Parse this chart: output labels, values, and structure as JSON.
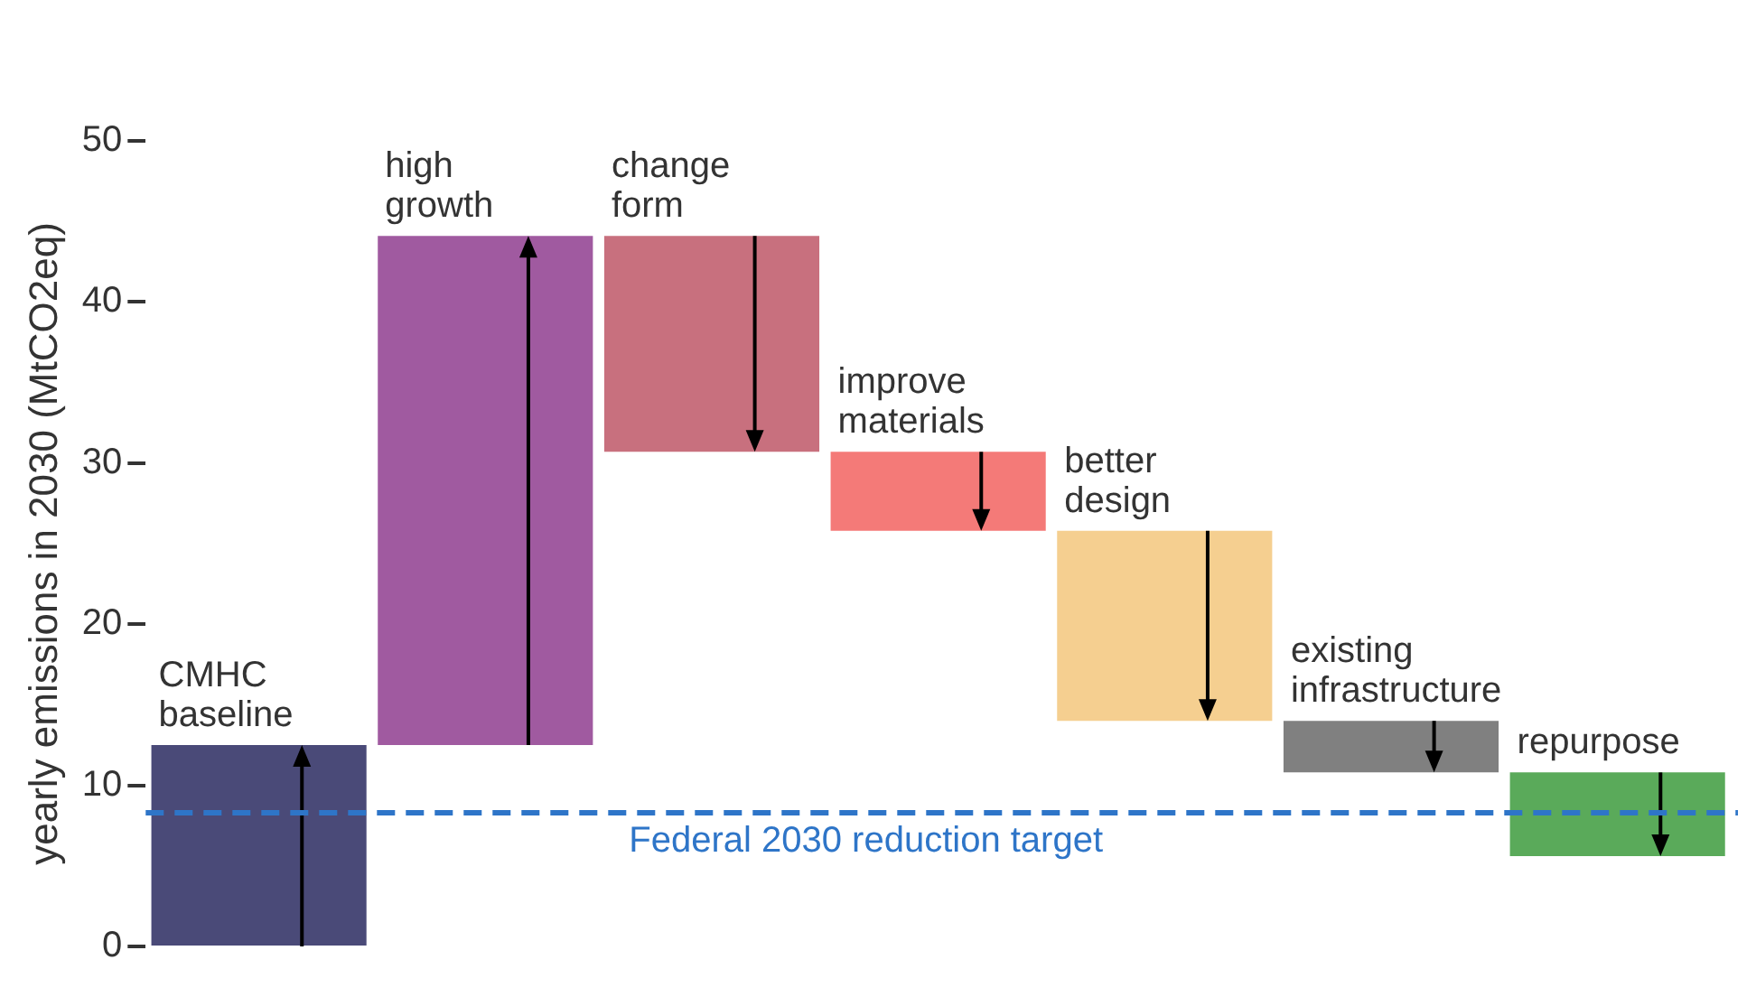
{
  "chart_data": {
    "type": "bar",
    "ylabel": "yearly emissions in 2030 (MtCO2eq)",
    "categories": [
      "CMHC baseline",
      "high growth",
      "change form",
      "improve materials",
      "better design",
      "existing infrastructure",
      "repurpose"
    ],
    "base": [
      0,
      12.5,
      44.1,
      30.7,
      25.8,
      14.0,
      10.8
    ],
    "values": [
      12.5,
      31.6,
      -13.4,
      -4.9,
      -11.8,
      -3.2,
      -5.2
    ],
    "colors": [
      "#4a4a78",
      "#a05aa0",
      "#c8707e",
      "#f47a78",
      "#f5cf90",
      "#808080",
      "#5aaa5a"
    ],
    "ylim": [
      0,
      50
    ],
    "yticks": [
      0,
      10,
      20,
      30,
      40,
      50
    ],
    "grid": false,
    "legend": false,
    "tick_labels": "y",
    "ref_lines": [
      {
        "axis": "y",
        "value": 8.3,
        "label": "Federal 2030 reduction target",
        "color": "#2e75c8",
        "line_style": "dashed"
      }
    ]
  }
}
